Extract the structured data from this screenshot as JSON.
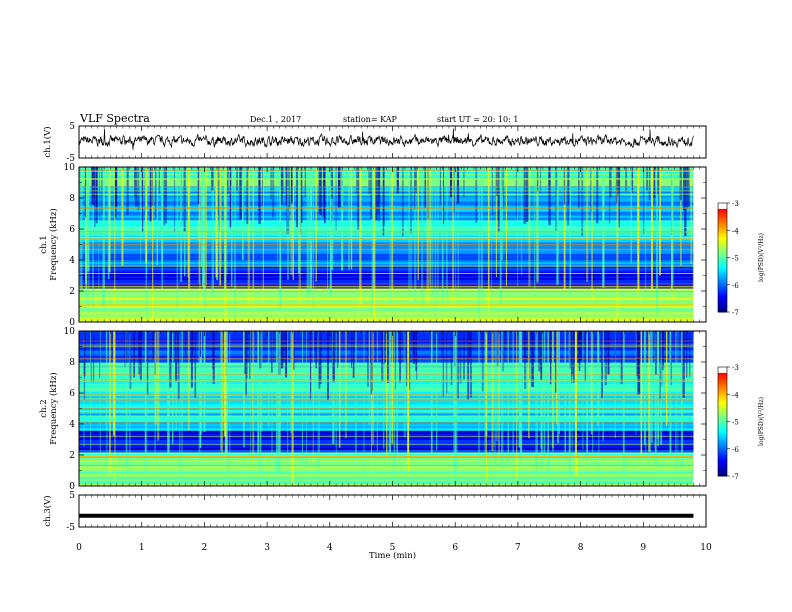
{
  "header": {
    "title": "VLF Spectra",
    "date": "Dec.1 , 2017",
    "station": "station= KAP",
    "start": "start  UT =   20: 10: 1"
  },
  "chart_data": [
    {
      "type": "line",
      "name": "ch1-waveform",
      "ylabel": "ch.1(V)",
      "ylim": [
        -5,
        5
      ],
      "yticks": [
        "5",
        "-5"
      ],
      "x_range_min": [
        0,
        9.8
      ],
      "description_level": "noisy trace around 0 V with amplitude about 1-2 V"
    },
    {
      "type": "heatmap",
      "name": "ch1-spectrogram",
      "ylabel": "ch.1\nFrequency (kHz)",
      "ylim": [
        0,
        10
      ],
      "yticks": [
        "0",
        "2",
        "4",
        "6",
        "8",
        "10"
      ],
      "x_range_min": [
        0,
        9.8
      ],
      "colorbar": {
        "label": "log(PSD)(V²/Hz)",
        "range": [
          -7,
          -3
        ],
        "ticks": [
          "-3",
          "-4",
          "-5",
          "-6",
          "-7"
        ]
      },
      "bands_khz": [
        {
          "from": 0,
          "to": 2.2,
          "level": -4.5
        },
        {
          "from": 2.2,
          "to": 3.6,
          "level": -6.4
        },
        {
          "from": 3.6,
          "to": 5.2,
          "level": -5.8
        },
        {
          "from": 5.2,
          "to": 6.6,
          "level": -5.3
        },
        {
          "from": 6.6,
          "to": 8.8,
          "level": -5.6
        },
        {
          "from": 8.8,
          "to": 10,
          "level": -4.9
        }
      ]
    },
    {
      "type": "heatmap",
      "name": "ch2-spectrogram",
      "ylabel": "ch.2\nFrequency (kHz)",
      "ylim": [
        0,
        10
      ],
      "yticks": [
        "0",
        "2",
        "4",
        "6",
        "8",
        "10"
      ],
      "x_range_min": [
        0,
        9.8
      ],
      "colorbar": {
        "label": "log(PSD)(V²/Hz)",
        "range": [
          -7,
          -3
        ],
        "ticks": [
          "-3",
          "-4",
          "-5",
          "-6",
          "-7"
        ]
      },
      "bands_khz": [
        {
          "from": 0,
          "to": 2.2,
          "level": -4.8
        },
        {
          "from": 2.2,
          "to": 3.6,
          "level": -6.4
        },
        {
          "from": 3.6,
          "to": 6.2,
          "level": -5.4
        },
        {
          "from": 6.2,
          "to": 8.0,
          "level": -5.0
        },
        {
          "from": 8.0,
          "to": 10,
          "level": -6.2
        }
      ]
    },
    {
      "type": "line",
      "name": "ch3-waveform",
      "ylabel": "ch.3(V)",
      "ylim": [
        -5,
        5
      ],
      "yticks": [
        "5",
        "-5"
      ],
      "x_range_min": [
        0,
        9.8
      ],
      "level_v": -1.5
    }
  ],
  "xaxis": {
    "label": "Time  (min)",
    "range": [
      0,
      10
    ],
    "ticks": [
      "0",
      "1",
      "2",
      "3",
      "4",
      "5",
      "6",
      "7",
      "8",
      "9",
      "10"
    ]
  },
  "colors": {
    "jet": [
      "#00007f",
      "#0000ff",
      "#007fff",
      "#00ffff",
      "#7fff7f",
      "#ffff00",
      "#ff7f00",
      "#ff0000",
      "#ffffff"
    ]
  }
}
